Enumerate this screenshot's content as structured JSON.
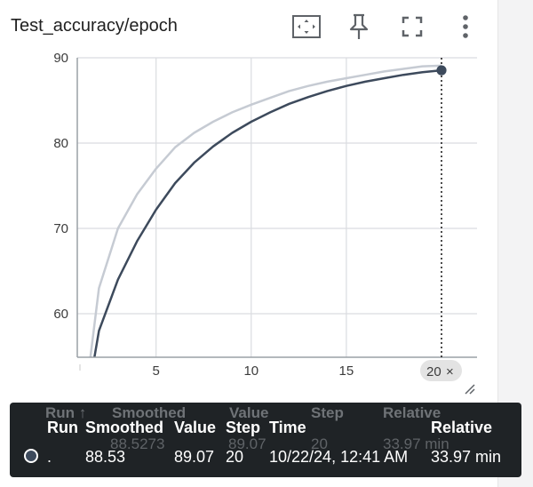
{
  "card": {
    "title": "Test_accuracy/epoch"
  },
  "toolbar": {
    "fit_icon": "fit-domain-icon",
    "pin_icon": "pin-icon",
    "fullscreen_icon": "fullscreen-icon",
    "more_icon": "more-vert-icon"
  },
  "chart_data": {
    "type": "line",
    "ylim": [
      55,
      90
    ],
    "xlim": [
      1,
      20
    ],
    "y_ticks": [
      "90",
      "80",
      "70",
      "60"
    ],
    "x_ticks": [
      "5",
      "10",
      "15"
    ],
    "x_cursor_label": "20",
    "x_cursor_close": "×",
    "grid": true,
    "series": [
      {
        "x": [
          1,
          2,
          3,
          4,
          5,
          6,
          7,
          8,
          9,
          10,
          11,
          12,
          13,
          14,
          15,
          16,
          17,
          18,
          19,
          20
        ],
        "values": [
          45,
          63,
          70,
          74,
          77,
          79.5,
          81.2,
          82.5,
          83.6,
          84.5,
          85.3,
          86.1,
          86.7,
          87.2,
          87.6,
          88,
          88.4,
          88.7,
          89,
          89.07
        ],
        "color": "#c6cbd3"
      },
      {
        "x": [
          1,
          2,
          3,
          4,
          5,
          6,
          7,
          8,
          9,
          10,
          11,
          12,
          13,
          14,
          15,
          16,
          17,
          18,
          19,
          20
        ],
        "values": [
          45,
          58,
          64,
          68.5,
          72.2,
          75.3,
          77.7,
          79.6,
          81.2,
          82.5,
          83.6,
          84.6,
          85.4,
          86.1,
          86.7,
          87.2,
          87.6,
          88,
          88.3,
          88.53
        ],
        "color": "#3d4a5c"
      }
    ]
  },
  "tooltip": {
    "ghost_headers": [
      "Run ↑",
      "Smoothed",
      "Value",
      "Step",
      "Relative"
    ],
    "ghost_values": [
      "88.5273",
      "89.07",
      "20",
      "33.97 min"
    ],
    "headers": {
      "run": "Run",
      "smoothed": "Smoothed",
      "value": "Value",
      "step": "Step",
      "time": "Time",
      "relative": "Relative"
    },
    "row": {
      "run": ".",
      "smoothed": "88.53",
      "value": "89.07",
      "step": "20",
      "time": "10/22/24, 12:41 AM",
      "relative": "33.97 min"
    },
    "run_color": "#3d4a5c"
  },
  "colors": {
    "grid": "#dadce0",
    "axis": "#9aa0a6",
    "cursor": "#212121"
  }
}
